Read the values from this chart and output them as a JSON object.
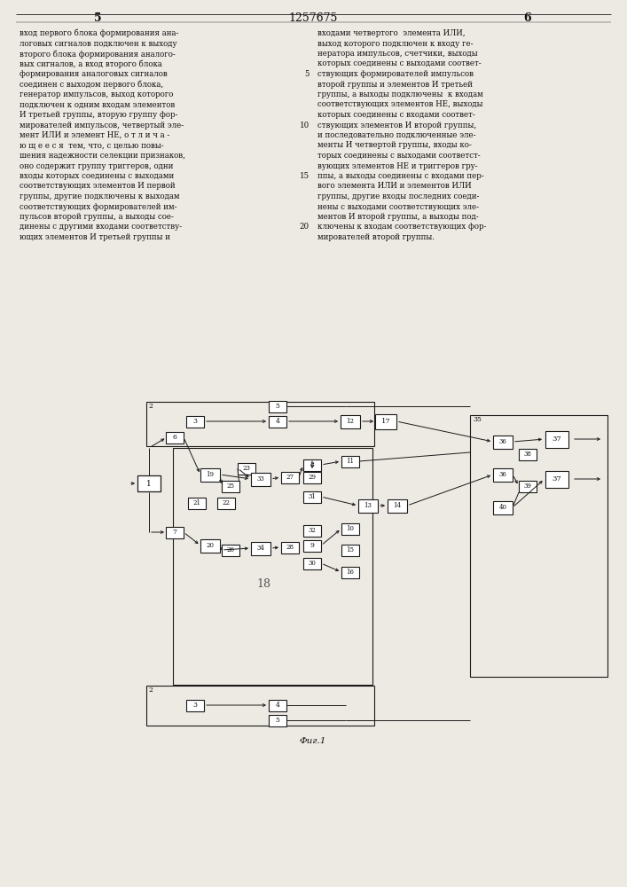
{
  "page_header": "1257675",
  "page_left": "5",
  "page_right": "6",
  "title": "Фиг.1",
  "bg_color": "#ede9e3",
  "box_color": "#1a1a1a",
  "line_color": "#1a1a1a",
  "text_color": "#111111",
  "left_col_lines": [
    "вход первого блока формирования ана-",
    "логовых сигналов подключен к выходу",
    "второго блока формирования аналого-",
    "вых сигналов, а вход второго блока",
    "формирования аналоговых сигналов",
    "соединен с выходом первого блока,",
    "генератор импульсов, выход которого",
    "подключен к одним входам элементов",
    "И третьей группы, вторую группу фор-",
    "мирователей импульсов, четвертый эле-  10",
    "мент ИЛИ и элемент НЕ, о т л и ч а -",
    "ю щ е е с я  тем, что, с целью повы-",
    "шения надежности селекции признаков,",
    "оно содержит группу триггеров, одни",
    "входы которых соединены с выходами",
    "соответствующих элементов И первой",
    "группы, другие подключены к выходам",
    "соответствующих формирователей им-",
    "пульсов второй группы, а выходы сое-",
    "динены с другими входами соответству-  20",
    "ющих элементов И третьей группы и"
  ],
  "right_col_lines": [
    "входами четвертого  элемента ИЛИ,",
    "выход которого подключен к входу ге-",
    "нератора импульсов, счетчики, выходы",
    "которых соединены с выходами соответ-",
    "ствующих формирователей импульсов  5",
    "второй группы и элементов И третьей",
    "группы, а выходы подключены  к входам",
    "соответствующих элементов НЕ, выходы",
    "которых соединены с входами соответ-",
    "ствующих элементов И второй группы,  10",
    "и последовательно подключенные эле-",
    "менты И четвертой группы, входы ко-",
    "торых соединены с выходами соответст-",
    "вующих элементов НЕ и триггеров гру-  15",
    "ппы, а выходы соединены с входами пер-",
    "вого элемента ИЛИ и элементов ИЛИ",
    "группы, другие входы последних соеди-",
    "нены с выходами соответствующих эле-",
    "ментов И второй группы, а выходы под-",
    "ключены к входам соответствующих фор-  20",
    "мирователей второй группы."
  ]
}
